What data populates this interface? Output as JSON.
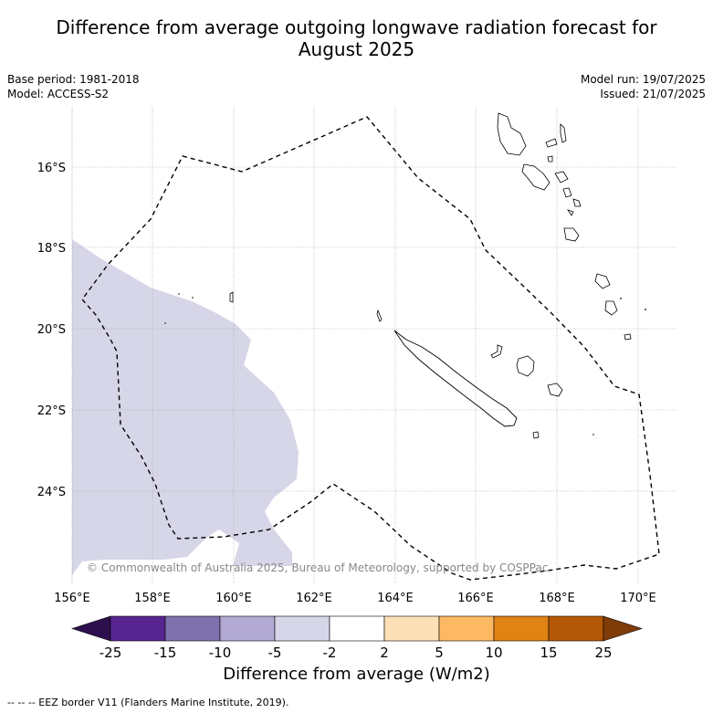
{
  "header": {
    "title_line1": "Difference from average outgoing longwave radiation forecast for",
    "title_line2": "August 2025",
    "base_period": "Base period: 1981-2018",
    "model": "Model: ACCESS-S2",
    "model_run": "Model run: 19/07/2025",
    "issued": "Issued: 21/07/2025"
  },
  "map": {
    "copyright": "© Commonwealth of Australia 2025, Bureau of Meteorology, supported by COSPPac",
    "lat_labels": [
      "16°S",
      "18°S",
      "20°S",
      "22°S",
      "24°S"
    ],
    "lon_labels": [
      "156°E",
      "158°E",
      "160°E",
      "162°E",
      "164°E",
      "166°E",
      "168°E",
      "170°E"
    ],
    "anomaly_region_color": "#d6d6e8",
    "coastline_color": "#000000",
    "eez_line_style": "dashed"
  },
  "colorbar": {
    "title": "Difference from average (W/m2)",
    "tick_labels": [
      "-25",
      "-15",
      "-10",
      "-5",
      "-2",
      "2",
      "5",
      "10",
      "15",
      "25"
    ],
    "colors": [
      "#2d0f4e",
      "#56258f",
      "#7f71ad",
      "#b2aad3",
      "#d6d6e8",
      "#ffffff",
      "#fde0b6",
      "#fdb863",
      "#e08214",
      "#b35806",
      "#7f3b08"
    ]
  },
  "footer": {
    "legend": "--  --  -- EEZ border V11 (Flanders Marine Institute, 2019)."
  }
}
